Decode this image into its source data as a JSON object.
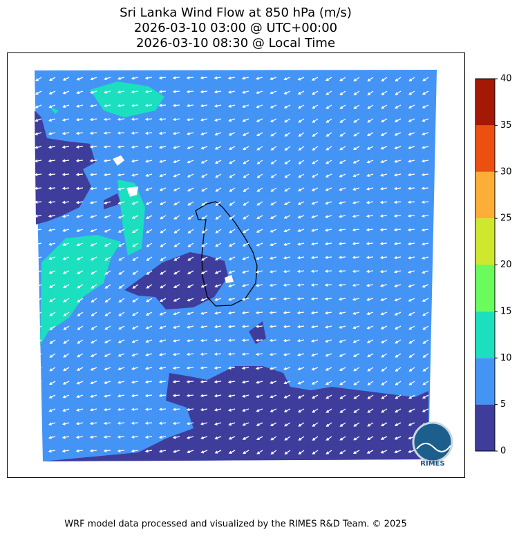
{
  "title": [
    "Sri Lanka Wind Flow at 850 hPa (m/s)",
    "2026-03-10 03:00 @ UTC+00:00",
    "2026-03-10 08:30 @ Local Time"
  ],
  "colorbar": {
    "ticks": [
      0,
      5,
      10,
      15,
      20,
      25,
      30,
      35,
      40
    ],
    "colors": [
      "#3f3d9c",
      "#4394f5",
      "#1bdfbf",
      "#6afc5c",
      "#cfe82e",
      "#fcae36",
      "#ec4f10",
      "#a51806"
    ]
  },
  "logo": "RIMES",
  "footer": "WRF model data processed and visualized by the RIMES R&D Team. © 2025"
}
